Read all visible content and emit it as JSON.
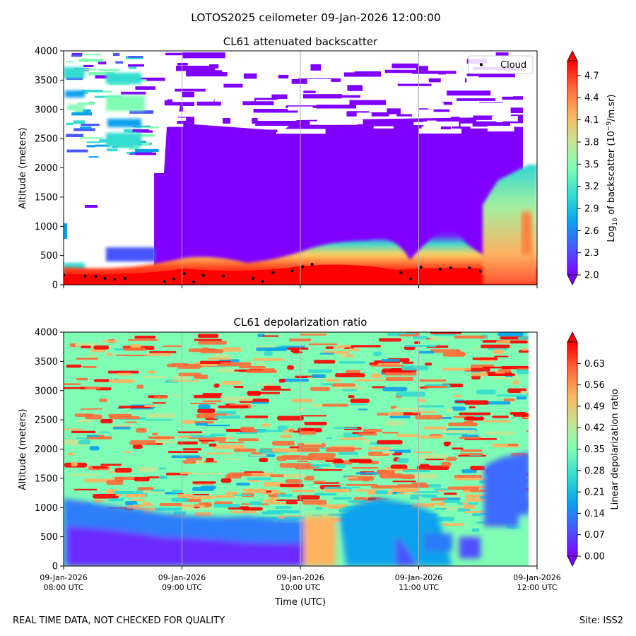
{
  "figure": {
    "suptitle": "LOTOS2025 ceilometer 09-Jan-2026 12:00:00",
    "footer_left": "REAL TIME DATA, NOT CHECKED FOR QUALITY",
    "footer_right": "Site: ISS2"
  },
  "chart_data": [
    {
      "type": "heatmap",
      "title": "CL61 attenuated backscatter",
      "xlabel": "",
      "ylabel": "Altitude (meters)",
      "ylim": [
        0,
        4000
      ],
      "yticks": [
        0,
        500,
        1000,
        1500,
        2000,
        2500,
        3000,
        3500,
        4000
      ],
      "xlim_hours": [
        8,
        12
      ],
      "grid_x": true,
      "legend": {
        "position": "top-right",
        "entries": [
          "Cloud"
        ]
      },
      "colorbar": {
        "label_prefix": "Log",
        "label_sub": "10",
        "label_mid": " of backscatter (10",
        "label_sup": "−9",
        "label_suffix": "/m.sr)",
        "vmin": 2.0,
        "vmax": 4.9,
        "extend": "both",
        "ticks": [
          "2.0",
          "2.3",
          "2.6",
          "2.9",
          "3.2",
          "3.5",
          "3.8",
          "4.1",
          "4.4",
          "4.7"
        ]
      },
      "cloud_base_points": [
        {
          "t": 8.0,
          "alt": 170
        },
        {
          "t": 8.18,
          "alt": 150
        },
        {
          "t": 8.27,
          "alt": 140
        },
        {
          "t": 8.35,
          "alt": 110
        },
        {
          "t": 8.43,
          "alt": 90
        },
        {
          "t": 8.52,
          "alt": 110
        },
        {
          "t": 8.85,
          "alt": 60
        },
        {
          "t": 8.93,
          "alt": 100
        },
        {
          "t": 9.02,
          "alt": 190
        },
        {
          "t": 9.1,
          "alt": 50
        },
        {
          "t": 9.18,
          "alt": 160
        },
        {
          "t": 9.35,
          "alt": 150
        },
        {
          "t": 9.6,
          "alt": 110
        },
        {
          "t": 9.68,
          "alt": 60
        },
        {
          "t": 9.77,
          "alt": 210
        },
        {
          "t": 9.93,
          "alt": 240
        },
        {
          "t": 10.02,
          "alt": 310
        },
        {
          "t": 10.1,
          "alt": 350
        },
        {
          "t": 10.85,
          "alt": 210
        },
        {
          "t": 10.93,
          "alt": 100
        },
        {
          "t": 11.02,
          "alt": 300
        },
        {
          "t": 11.18,
          "alt": 270
        },
        {
          "t": 11.27,
          "alt": 290
        },
        {
          "t": 11.43,
          "alt": 290
        },
        {
          "t": 11.52,
          "alt": 230
        }
      ]
    },
    {
      "type": "heatmap",
      "title": "CL61 depolarization ratio",
      "xlabel": "Time (UTC)",
      "ylabel": "Altitude (meters)",
      "ylim": [
        0,
        4000
      ],
      "yticks": [
        0,
        500,
        1000,
        1500,
        2000,
        2500,
        3000,
        3500,
        4000
      ],
      "xlim_hours": [
        8,
        12
      ],
      "grid_x": true,
      "xticks": [
        {
          "t": 8,
          "line1": "09-Jan-2026",
          "line2": "08:00 UTC"
        },
        {
          "t": 9,
          "line1": "09-Jan-2026",
          "line2": "09:00 UTC"
        },
        {
          "t": 10,
          "line1": "09-Jan-2026",
          "line2": "10:00 UTC"
        },
        {
          "t": 11,
          "line1": "09-Jan-2026",
          "line2": "11:00 UTC"
        },
        {
          "t": 12,
          "line1": "09-Jan-2026",
          "line2": "12:00 UTC"
        }
      ],
      "colorbar": {
        "label": "Linear depolarization ratio",
        "vmin": 0.0,
        "vmax": 0.7,
        "extend": "both",
        "ticks": [
          "0.00",
          "0.07",
          "0.14",
          "0.21",
          "0.28",
          "0.35",
          "0.42",
          "0.49",
          "0.56",
          "0.63"
        ]
      }
    }
  ]
}
